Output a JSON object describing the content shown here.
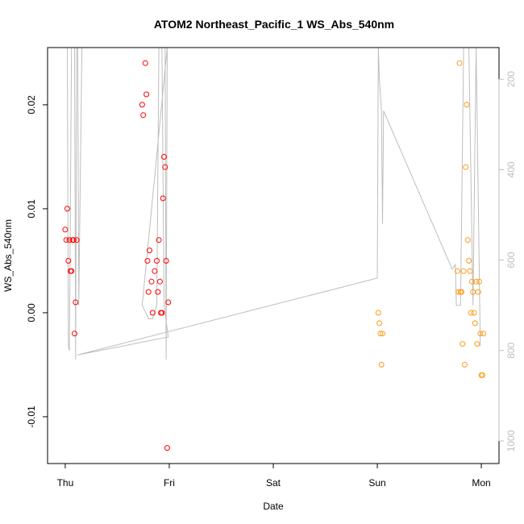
{
  "chart_data": {
    "type": "scatter",
    "title": "ATOM2 Northeast_Pacific_1 WS_Abs_540nm",
    "xlabel": "Date",
    "ylabel": "WS_Abs_540nm",
    "x_ticks": [
      "Thu",
      "Fri",
      "Sat",
      "Sun",
      "Mon"
    ],
    "y_ticks": [
      "-0.01",
      "0.00",
      "0.01",
      "0.02"
    ],
    "y_tick_values": [
      -0.01,
      0.0,
      0.01,
      0.02
    ],
    "right_ticks": [
      "200",
      "400",
      "600",
      "800",
      "1000"
    ],
    "right_tick_values": [
      200,
      400,
      600,
      800,
      1000
    ],
    "xlim_days_from_thu": [
      -0.17,
      4.17
    ],
    "ylim": [
      -0.0145,
      0.0255
    ],
    "right_ylim": [
      1050,
      130
    ],
    "right_axis_reversed": true,
    "colors": {
      "series1": "#ff0000",
      "series2": "#ff9b1a",
      "line": "#bebebe"
    },
    "series": [
      {
        "color": "#ff0000",
        "points": [
          [
            0.0,
            0.008
          ],
          [
            0.01,
            0.007
          ],
          [
            0.02,
            0.01
          ],
          [
            0.03,
            0.005
          ],
          [
            0.04,
            0.007
          ],
          [
            0.05,
            0.004
          ],
          [
            0.06,
            0.004
          ],
          [
            0.07,
            0.007
          ],
          [
            0.08,
            0.007
          ],
          [
            0.09,
            -0.002
          ],
          [
            0.1,
            0.001
          ],
          [
            0.11,
            0.007
          ],
          [
            0.74,
            0.02
          ],
          [
            0.75,
            0.019
          ],
          [
            0.77,
            0.024
          ],
          [
            0.78,
            0.021
          ],
          [
            0.79,
            0.005
          ],
          [
            0.8,
            0.002
          ],
          [
            0.81,
            0.006
          ],
          [
            0.83,
            0.003
          ],
          [
            0.84,
            0.0
          ],
          [
            0.86,
            0.004
          ],
          [
            0.88,
            0.005
          ],
          [
            0.89,
            0.002
          ],
          [
            0.9,
            0.007
          ],
          [
            0.91,
            0.003
          ],
          [
            0.92,
            0.0
          ],
          [
            0.93,
            0.0
          ],
          [
            0.94,
            0.011
          ],
          [
            0.95,
            0.015
          ],
          [
            0.96,
            0.014
          ],
          [
            0.97,
            0.005
          ],
          [
            0.98,
            -0.013
          ],
          [
            0.99,
            0.001
          ]
        ]
      },
      {
        "color": "#ff9b1a",
        "points": [
          [
            3.01,
            0.0
          ],
          [
            3.02,
            -0.001
          ],
          [
            3.03,
            -0.002
          ],
          [
            3.04,
            -0.005
          ],
          [
            3.05,
            -0.002
          ],
          [
            3.77,
            0.004
          ],
          [
            3.78,
            0.002
          ],
          [
            3.79,
            0.024
          ],
          [
            3.8,
            0.002
          ],
          [
            3.81,
            0.002
          ],
          [
            3.82,
            -0.003
          ],
          [
            3.83,
            0.004
          ],
          [
            3.84,
            -0.005
          ],
          [
            3.85,
            0.014
          ],
          [
            3.86,
            0.02
          ],
          [
            3.87,
            0.007
          ],
          [
            3.88,
            0.005
          ],
          [
            3.89,
            0.004
          ],
          [
            3.9,
            0.0
          ],
          [
            3.91,
            0.003
          ],
          [
            3.92,
            0.002
          ],
          [
            3.93,
            0.0
          ],
          [
            3.94,
            -0.001
          ],
          [
            3.95,
            0.003
          ],
          [
            3.96,
            -0.003
          ],
          [
            3.97,
            0.002
          ],
          [
            3.98,
            0.003
          ],
          [
            3.99,
            -0.002
          ],
          [
            4.0,
            -0.006
          ],
          [
            4.01,
            -0.006
          ],
          [
            4.02,
            -0.002
          ]
        ]
      }
    ],
    "line_right_axis": [
      [
        0.0,
        130
      ],
      [
        0.02,
        130
      ],
      [
        0.03,
        790
      ],
      [
        0.04,
        800
      ],
      [
        0.06,
        130
      ],
      [
        0.07,
        130
      ],
      [
        0.09,
        130
      ],
      [
        0.1,
        820
      ],
      [
        0.11,
        130
      ],
      [
        0.12,
        130
      ],
      [
        0.13,
        700
      ],
      [
        0.16,
        130
      ],
      [
        0.96,
        130
      ],
      [
        0.97,
        820
      ],
      [
        0.98,
        130
      ],
      [
        0.74,
        700
      ],
      [
        0.76,
        710
      ],
      [
        0.8,
        730
      ],
      [
        0.84,
        730
      ],
      [
        0.88,
        700
      ],
      [
        0.9,
        130
      ],
      [
        0.93,
        130
      ],
      [
        0.95,
        700
      ],
      [
        0.99,
        770
      ],
      [
        0.115,
        810
      ],
      [
        3.0,
        640
      ],
      [
        3.01,
        130
      ],
      [
        3.02,
        200
      ],
      [
        3.04,
        270
      ],
      [
        3.05,
        520
      ],
      [
        3.06,
        270
      ],
      [
        3.72,
        620
      ],
      [
        3.75,
        610
      ],
      [
        3.76,
        700
      ],
      [
        3.8,
        700
      ],
      [
        3.83,
        130
      ],
      [
        3.88,
        130
      ],
      [
        3.92,
        700
      ],
      [
        3.95,
        130
      ],
      [
        3.99,
        790
      ]
    ]
  }
}
